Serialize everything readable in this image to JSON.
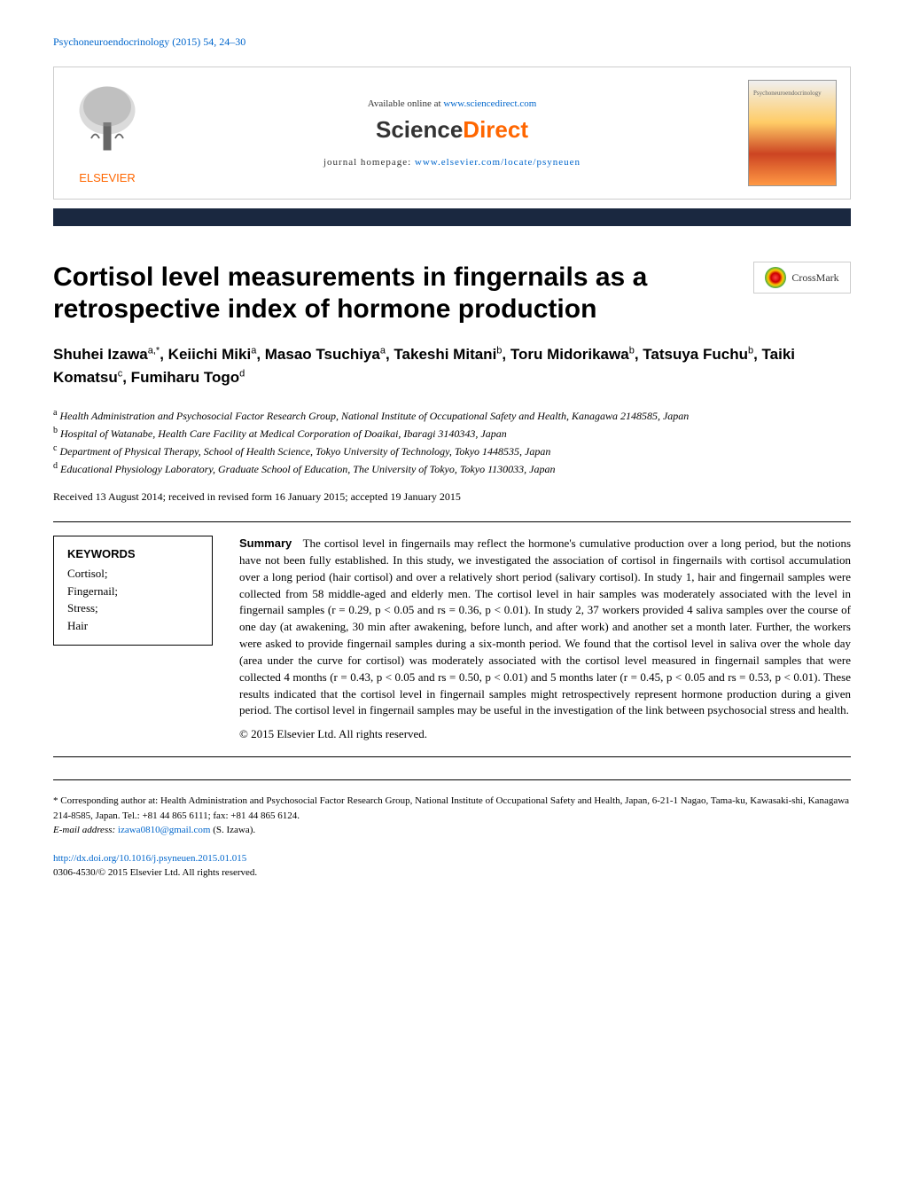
{
  "journal_ref": "Psychoneuroendocrinology (2015) 54, 24–30",
  "banner": {
    "elsevier_name": "ELSEVIER",
    "available_text": "Available online at ",
    "available_link": "www.sciencedirect.com",
    "sciencedirect_science": "Science",
    "sciencedirect_direct": "Direct",
    "homepage_text": "journal homepage: ",
    "homepage_link": "www.elsevier.com/locate/psyneuen",
    "cover_title": "Psychoneuroendocrinology"
  },
  "crossmark_text": "CrossMark",
  "title": "Cortisol level measurements in fingernails as a retrospective index of hormone production",
  "authors_html": "Shuhei Izawa<sup>a,*</sup>, Keiichi Miki<sup>a</sup>, Masao Tsuchiya<sup>a</sup>, Takeshi Mitani<sup>b</sup>, Toru Midorikawa<sup>b</sup>, Tatsuya Fuchu<sup>b</sup>, Taiki Komatsu<sup>c</sup>, Fumiharu Togo<sup>d</sup>",
  "affiliations": {
    "a": "Health Administration and Psychosocial Factor Research Group, National Institute of Occupational Safety and Health, Kanagawa 2148585, Japan",
    "b": "Hospital of Watanabe, Health Care Facility at Medical Corporation of Doaikai, Ibaragi 3140343, Japan",
    "c": "Department of Physical Therapy, School of Health Science, Tokyo University of Technology, Tokyo 1448535, Japan",
    "d": "Educational Physiology Laboratory, Graduate School of Education, The University of Tokyo, Tokyo 1130033, Japan"
  },
  "dates": "Received 13 August 2014; received in revised form 16 January 2015; accepted 19 January 2015",
  "keywords": {
    "heading": "KEYWORDS",
    "items": "Cortisol;\nFingernail;\nStress;\nHair"
  },
  "summary": {
    "label": "Summary",
    "text": "The cortisol level in fingernails may reflect the hormone's cumulative production over a long period, but the notions have not been fully established. In this study, we investigated the association of cortisol in fingernails with cortisol accumulation over a long period (hair cortisol) and over a relatively short period (salivary cortisol). In study 1, hair and fingernail samples were collected from 58 middle-aged and elderly men. The cortisol level in hair samples was moderately associated with the level in fingernail samples (r = 0.29, p < 0.05 and rs = 0.36, p < 0.01). In study 2, 37 workers provided 4 saliva samples over the course of one day (at awakening, 30 min after awakening, before lunch, and after work) and another set a month later. Further, the workers were asked to provide fingernail samples during a six-month period. We found that the cortisol level in saliva over the whole day (area under the curve for cortisol) was moderately associated with the cortisol level measured in fingernail samples that were collected 4 months (r = 0.43, p < 0.05 and rs = 0.50, p < 0.01) and 5 months later (r = 0.45, p < 0.05 and rs = 0.53, p < 0.01). These results indicated that the cortisol level in fingernail samples might retrospectively represent hormone production during a given period. The cortisol level in fingernail samples may be useful in the investigation of the link between psychosocial stress and health.",
    "copyright": "© 2015 Elsevier Ltd. All rights reserved."
  },
  "corresponding": {
    "text": "* Corresponding author at: Health Administration and Psychosocial Factor Research Group, National Institute of Occupational Safety and Health, Japan, 6-21-1 Nagao, Tama-ku, Kawasaki-shi, Kanagawa 214-8585, Japan. Tel.: +81 44 865 6111; fax: +81 44 865 6124.",
    "email_label": "E-mail address: ",
    "email": "izawa0810@gmail.com",
    "email_suffix": " (S. Izawa)."
  },
  "doi": {
    "link": "http://dx.doi.org/10.1016/j.psyneuen.2015.01.015",
    "issn": "0306-4530/© 2015 Elsevier Ltd. All rights reserved."
  },
  "colors": {
    "link_color": "#0066cc",
    "elsevier_orange": "#ff6600",
    "dark_bar": "#1a2840",
    "text": "#000000",
    "background": "#ffffff"
  }
}
